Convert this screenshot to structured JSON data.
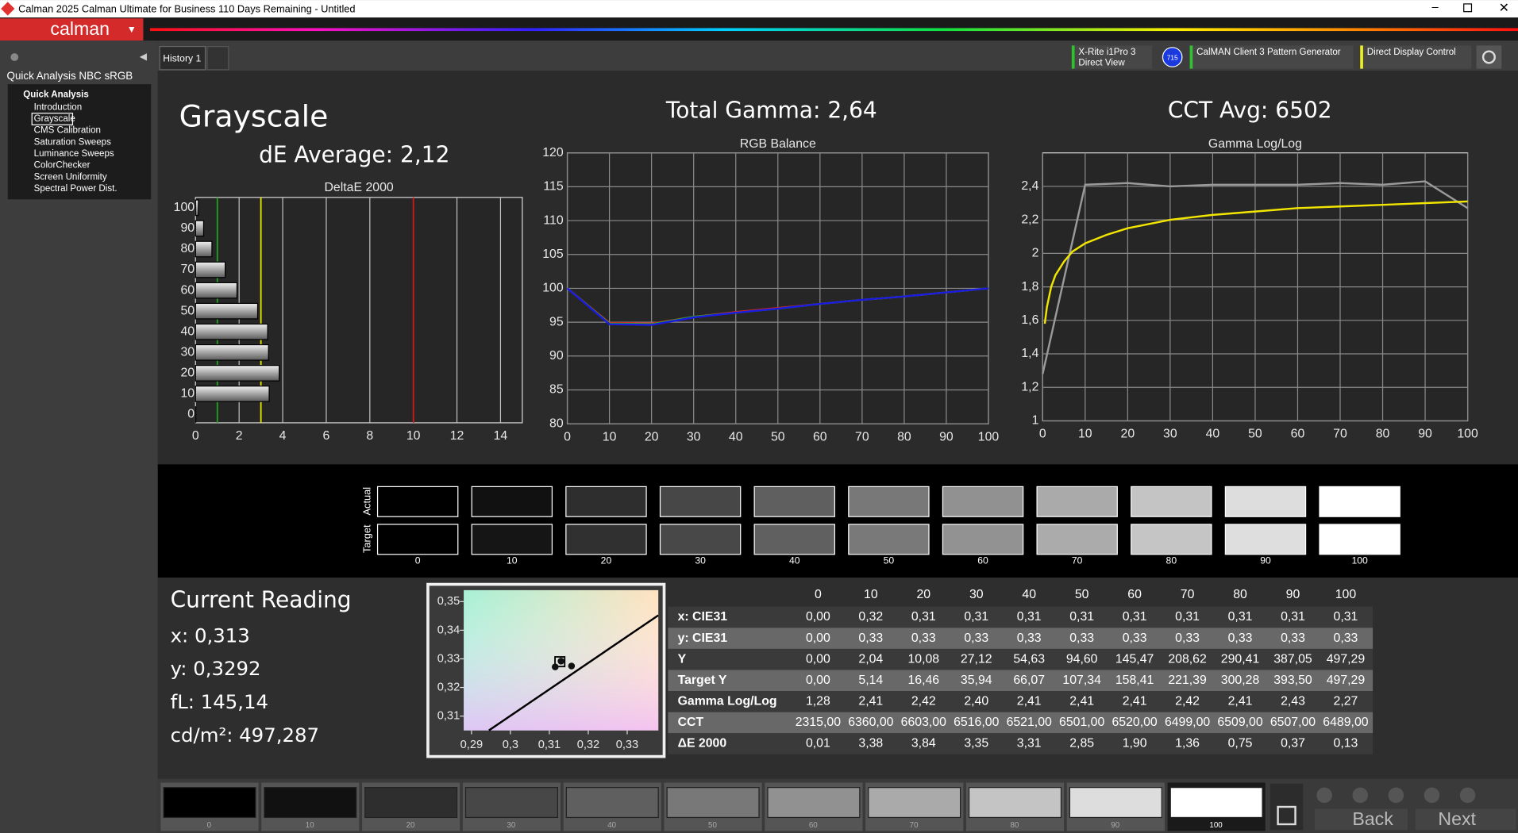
{
  "window": {
    "title": "Calman 2025 Calman Ultimate for Business 110 Days Remaining  - Untitled",
    "app_name": "calman"
  },
  "sidebar": {
    "title": "Quick Analysis NBC sRGB",
    "tree_root": "Quick Analysis",
    "items": [
      "Introduction",
      "Grayscale",
      "CMS Calibration",
      "Saturation Sweeps",
      "Luminance Sweeps",
      "ColorChecker",
      "Screen Uniformity",
      "Spectral Power Dist."
    ],
    "selected": 1
  },
  "tabs": [
    "History 1"
  ],
  "devices": {
    "meter": [
      "X-Rite i1Pro 3",
      "Direct View"
    ],
    "badge": "715",
    "generator": "CalMAN Client 3 Pattern Generator",
    "display": "Direct Display Control"
  },
  "header": {
    "title": "Grayscale",
    "de_average": "dE Average: 2,12",
    "total_gamma": "Total Gamma: 2,64",
    "cct_avg": "CCT Avg: 6502"
  },
  "charts": {
    "deltae": {
      "type": "bar",
      "orientation": "horizontal",
      "title": "DeltaE 2000",
      "categories": [
        0,
        10,
        20,
        30,
        40,
        50,
        60,
        70,
        80,
        90,
        100
      ],
      "values": [
        0.01,
        3.38,
        3.84,
        3.35,
        3.31,
        2.85,
        1.9,
        1.36,
        0.75,
        0.37,
        0.13
      ],
      "xlim": [
        0,
        15
      ],
      "xticks": [
        0,
        2,
        4,
        6,
        8,
        10,
        12,
        14
      ],
      "ylim": [
        -4,
        105
      ],
      "reference_lines": [
        {
          "value": 1,
          "color": "#22a022"
        },
        {
          "value": 3,
          "color": "#e6e600"
        },
        {
          "value": 10,
          "color": "#d01818"
        }
      ],
      "grid": true
    },
    "rgb": {
      "type": "line",
      "title": "RGB Balance",
      "x": [
        0,
        10,
        20,
        30,
        40,
        50,
        60,
        70,
        80,
        90,
        100
      ],
      "series": [
        {
          "color": "#e02020",
          "values": [
            100,
            94.9,
            94.8,
            95.8,
            96.5,
            97.1,
            97.7,
            98.3,
            98.8,
            99.4,
            100
          ]
        },
        {
          "color": "#20b020",
          "values": [
            100,
            94.8,
            94.7,
            95.8,
            96.4,
            97.0,
            97.7,
            98.3,
            98.8,
            99.4,
            100
          ]
        },
        {
          "color": "#1a1ae0",
          "values": [
            100,
            94.7,
            94.6,
            95.7,
            96.4,
            97.0,
            97.7,
            98.3,
            98.8,
            99.4,
            100
          ]
        }
      ],
      "xlim": [
        0,
        100
      ],
      "xticks": [
        0,
        10,
        20,
        30,
        40,
        50,
        60,
        70,
        80,
        90,
        100
      ],
      "ylim": [
        80,
        120
      ],
      "yticks": [
        80,
        85,
        90,
        95,
        100,
        105,
        110,
        115,
        120
      ],
      "grid": true
    },
    "gamma": {
      "type": "line",
      "title": "Gamma Log/Log",
      "series": [
        {
          "color": "#9a9a9a",
          "x": [
            0,
            10,
            20,
            30,
            40,
            50,
            60,
            70,
            80,
            90,
            100
          ],
          "values": [
            1.28,
            2.41,
            2.42,
            2.4,
            2.41,
            2.41,
            2.41,
            2.42,
            2.41,
            2.43,
            2.27
          ]
        },
        {
          "color": "#f2e600",
          "x": [
            0.5,
            1,
            2,
            3,
            5,
            7,
            10,
            15,
            20,
            30,
            40,
            50,
            60,
            70,
            80,
            90,
            100
          ],
          "values": [
            1.58,
            1.68,
            1.8,
            1.87,
            1.95,
            2.01,
            2.06,
            2.11,
            2.15,
            2.2,
            2.23,
            2.25,
            2.27,
            2.28,
            2.29,
            2.3,
            2.31
          ]
        }
      ],
      "xlim": [
        0,
        100
      ],
      "xticks": [
        0,
        10,
        20,
        30,
        40,
        50,
        60,
        70,
        80,
        90,
        100
      ],
      "ylim": [
        1,
        2.6
      ],
      "yticks": [
        1,
        {
          "value": 1.2,
          "label": "1,2"
        },
        {
          "value": 1.4,
          "label": "1,4"
        },
        {
          "value": 1.6,
          "label": "1,6"
        },
        {
          "value": 1.8,
          "label": "1,8"
        },
        2,
        {
          "value": 2.2,
          "label": "2,2"
        },
        {
          "value": 2.4,
          "label": "2,4"
        }
      ],
      "grid": true
    },
    "cie": {
      "type": "scatter",
      "xlim": [
        0.288,
        0.338
      ],
      "ylim": [
        0.305,
        0.354
      ],
      "xticks": [
        {
          "value": 0.29,
          "label": "0,29"
        },
        {
          "value": 0.3,
          "label": "0,3"
        },
        {
          "value": 0.31,
          "label": "0,31"
        },
        {
          "value": 0.32,
          "label": "0,32"
        },
        {
          "value": 0.33,
          "label": "0,33"
        }
      ],
      "yticks": [
        {
          "value": 0.31,
          "label": "0,31"
        },
        {
          "value": 0.32,
          "label": "0,32"
        },
        {
          "value": 0.33,
          "label": "0,33"
        },
        {
          "value": 0.34,
          "label": "0,34"
        },
        {
          "value": 0.35,
          "label": "0,35"
        }
      ],
      "target": {
        "x": 0.3127,
        "y": 0.329
      },
      "x": [
        0.3115,
        0.3157,
        0.313
      ],
      "y": [
        0.3272,
        0.3275,
        0.3292
      ]
    }
  },
  "swatches": {
    "row_labels": [
      "Actual",
      "Target"
    ],
    "levels": [
      0,
      10,
      20,
      30,
      40,
      50,
      60,
      70,
      80,
      90,
      100
    ],
    "actual_colors": [
      "#000000",
      "#111111",
      "#2e2e2e",
      "#474747",
      "#5f5f5f",
      "#787878",
      "#919191",
      "#aaaaaa",
      "#c4c4c4",
      "#dddddd",
      "#ffffff"
    ],
    "target_colors": [
      "#000000",
      "#151515",
      "#303030",
      "#484848",
      "#606060",
      "#797979",
      "#929292",
      "#ababab",
      "#c5c5c5",
      "#dedede",
      "#ffffff"
    ]
  },
  "current_reading": {
    "title": "Current Reading",
    "lines": [
      "x: 0,313",
      "y: 0,3292",
      "fL: 145,14",
      "cd/m²: 497,287"
    ]
  },
  "table": {
    "columns": [
      0,
      10,
      20,
      30,
      40,
      50,
      60,
      70,
      80,
      90,
      100
    ],
    "rows": [
      {
        "label": "x: CIE31",
        "values": [
          "0,00",
          "0,32",
          "0,31",
          "0,31",
          "0,31",
          "0,31",
          "0,31",
          "0,31",
          "0,31",
          "0,31",
          "0,31"
        ]
      },
      {
        "label": "y: CIE31",
        "values": [
          "0,00",
          "0,33",
          "0,33",
          "0,33",
          "0,33",
          "0,33",
          "0,33",
          "0,33",
          "0,33",
          "0,33",
          "0,33"
        ]
      },
      {
        "label": "Y",
        "values": [
          "0,00",
          "2,04",
          "10,08",
          "27,12",
          "54,63",
          "94,60",
          "145,47",
          "208,62",
          "290,41",
          "387,05",
          "497,29"
        ]
      },
      {
        "label": "Target Y",
        "values": [
          "0,00",
          "5,14",
          "16,46",
          "35,94",
          "66,07",
          "107,34",
          "158,41",
          "221,39",
          "300,28",
          "393,50",
          "497,29"
        ]
      },
      {
        "label": "Gamma Log/Log",
        "values": [
          "1,28",
          "2,41",
          "2,42",
          "2,40",
          "2,41",
          "2,41",
          "2,41",
          "2,42",
          "2,41",
          "2,43",
          "2,27"
        ]
      },
      {
        "label": "CCT",
        "values": [
          "2315,00",
          "6360,00",
          "6603,00",
          "6516,00",
          "6521,00",
          "6501,00",
          "6520,00",
          "6499,00",
          "6509,00",
          "6507,00",
          "6489,00"
        ]
      },
      {
        "label": "ΔE 2000",
        "values": [
          "0,01",
          "3,38",
          "3,84",
          "3,35",
          "3,31",
          "2,85",
          "1,90",
          "1,36",
          "0,75",
          "0,37",
          "0,13"
        ]
      }
    ]
  },
  "bottom_bar": {
    "levels": [
      0,
      10,
      20,
      30,
      40,
      50,
      60,
      70,
      80,
      90,
      100
    ],
    "colors": [
      "#000000",
      "#111111",
      "#2e2e2e",
      "#474747",
      "#5f5f5f",
      "#787878",
      "#919191",
      "#aaaaaa",
      "#c4c4c4",
      "#dddddd",
      "#ffffff"
    ],
    "selected": 10,
    "back": "Back",
    "next": "Next"
  }
}
